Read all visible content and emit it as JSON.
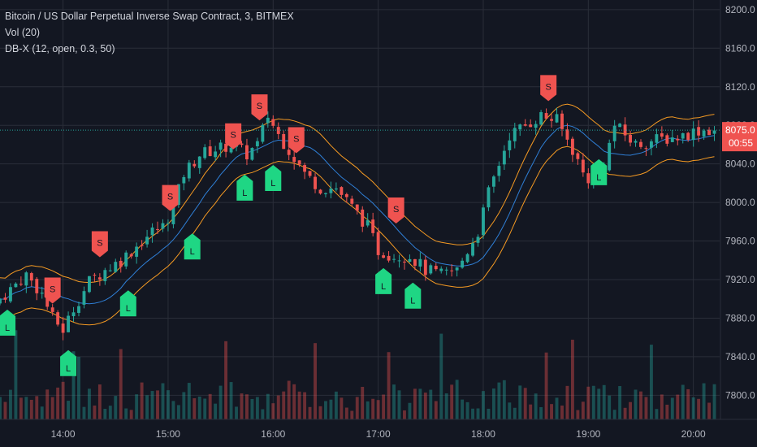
{
  "legend": {
    "symbol": "Bitcoin / US Dollar Perpetual Inverse Swap Contract, 3, BITMEX",
    "volume": "Vol (20)",
    "indicator": "DB-X (12, open, 0.3, 50)"
  },
  "price_badge": {
    "price": "8075.0",
    "countdown": "00:55",
    "color": "#ef5350"
  },
  "colors": {
    "up": "#26a69a",
    "down": "#ef5350",
    "band": "#f59a23",
    "mid": "#2f7fd6",
    "long_signal": "#1fd684",
    "short_signal": "#ef5350",
    "last_price_line": "#26a69a"
  },
  "chart_data": {
    "type": "candlestick",
    "y_ticks": [
      "8200.0",
      "8160.0",
      "8120.0",
      "8080.0",
      "8040.0",
      "8000.0",
      "7960.0",
      "7920.0",
      "7880.0",
      "7840.0",
      "7800.0"
    ],
    "y_tick_values": [
      8200,
      8160,
      8120,
      8080,
      8040,
      8000,
      7960,
      7920,
      7880,
      7840,
      7800
    ],
    "x_ticks": [
      "14:00",
      "15:00",
      "16:00",
      "17:00",
      "18:00",
      "19:00",
      "20:00"
    ],
    "x_tick_hours": [
      14,
      15,
      16,
      17,
      18,
      19,
      20
    ],
    "time_range": [
      13.4,
      20.25
    ],
    "ylim": [
      7775,
      8210
    ],
    "last_price": 8075,
    "price_path": [
      [
        13.4,
        7895
      ],
      [
        13.55,
        7910
      ],
      [
        13.7,
        7925
      ],
      [
        13.85,
        7905
      ],
      [
        13.95,
        7880
      ],
      [
        14.05,
        7868
      ],
      [
        14.15,
        7890
      ],
      [
        14.3,
        7918
      ],
      [
        14.45,
        7930
      ],
      [
        14.6,
        7940
      ],
      [
        14.75,
        7955
      ],
      [
        14.9,
        7970
      ],
      [
        15.0,
        7975
      ],
      [
        15.1,
        7995
      ],
      [
        15.2,
        8030
      ],
      [
        15.35,
        8050
      ],
      [
        15.5,
        8055
      ],
      [
        15.65,
        8060
      ],
      [
        15.8,
        8050
      ],
      [
        15.9,
        8060
      ],
      [
        16.0,
        8090
      ],
      [
        16.1,
        8070
      ],
      [
        16.2,
        8055
      ],
      [
        16.35,
        8030
      ],
      [
        16.5,
        8015
      ],
      [
        16.65,
        8015
      ],
      [
        16.8,
        7995
      ],
      [
        16.95,
        7975
      ],
      [
        17.05,
        7950
      ],
      [
        17.2,
        7945
      ],
      [
        17.35,
        7945
      ],
      [
        17.5,
        7930
      ],
      [
        17.65,
        7925
      ],
      [
        17.8,
        7930
      ],
      [
        17.9,
        7950
      ],
      [
        18.0,
        7970
      ],
      [
        18.1,
        8010
      ],
      [
        18.2,
        8040
      ],
      [
        18.3,
        8070
      ],
      [
        18.45,
        8080
      ],
      [
        18.6,
        8090
      ],
      [
        18.75,
        8085
      ],
      [
        18.9,
        8055
      ],
      [
        19.0,
        8030
      ],
      [
        19.1,
        8020
      ],
      [
        19.2,
        8040
      ],
      [
        19.3,
        8080
      ],
      [
        19.4,
        8070
      ],
      [
        19.5,
        8060
      ],
      [
        19.7,
        8065
      ],
      [
        19.9,
        8068
      ],
      [
        20.1,
        8075
      ],
      [
        20.25,
        8075
      ]
    ],
    "signals": [
      {
        "type": "L",
        "time": 13.47,
        "price": 7872
      },
      {
        "type": "S",
        "time": 13.9,
        "price": 7912
      },
      {
        "type": "L",
        "time": 14.05,
        "price": 7830
      },
      {
        "type": "S",
        "time": 14.35,
        "price": 7960
      },
      {
        "type": "L",
        "time": 14.62,
        "price": 7892
      },
      {
        "type": "S",
        "time": 15.02,
        "price": 8008
      },
      {
        "type": "L",
        "time": 15.23,
        "price": 7951
      },
      {
        "type": "S",
        "time": 15.62,
        "price": 8072
      },
      {
        "type": "L",
        "time": 15.73,
        "price": 8012
      },
      {
        "type": "S",
        "time": 15.87,
        "price": 8102
      },
      {
        "type": "L",
        "time": 16.0,
        "price": 8022
      },
      {
        "type": "S",
        "time": 16.22,
        "price": 8068
      },
      {
        "type": "S",
        "time": 17.17,
        "price": 7995
      },
      {
        "type": "L",
        "time": 17.05,
        "price": 7915
      },
      {
        "type": "L",
        "time": 17.33,
        "price": 7900
      },
      {
        "type": "S",
        "time": 18.62,
        "price": 8122
      },
      {
        "type": "L",
        "time": 19.1,
        "price": 8028
      }
    ]
  }
}
